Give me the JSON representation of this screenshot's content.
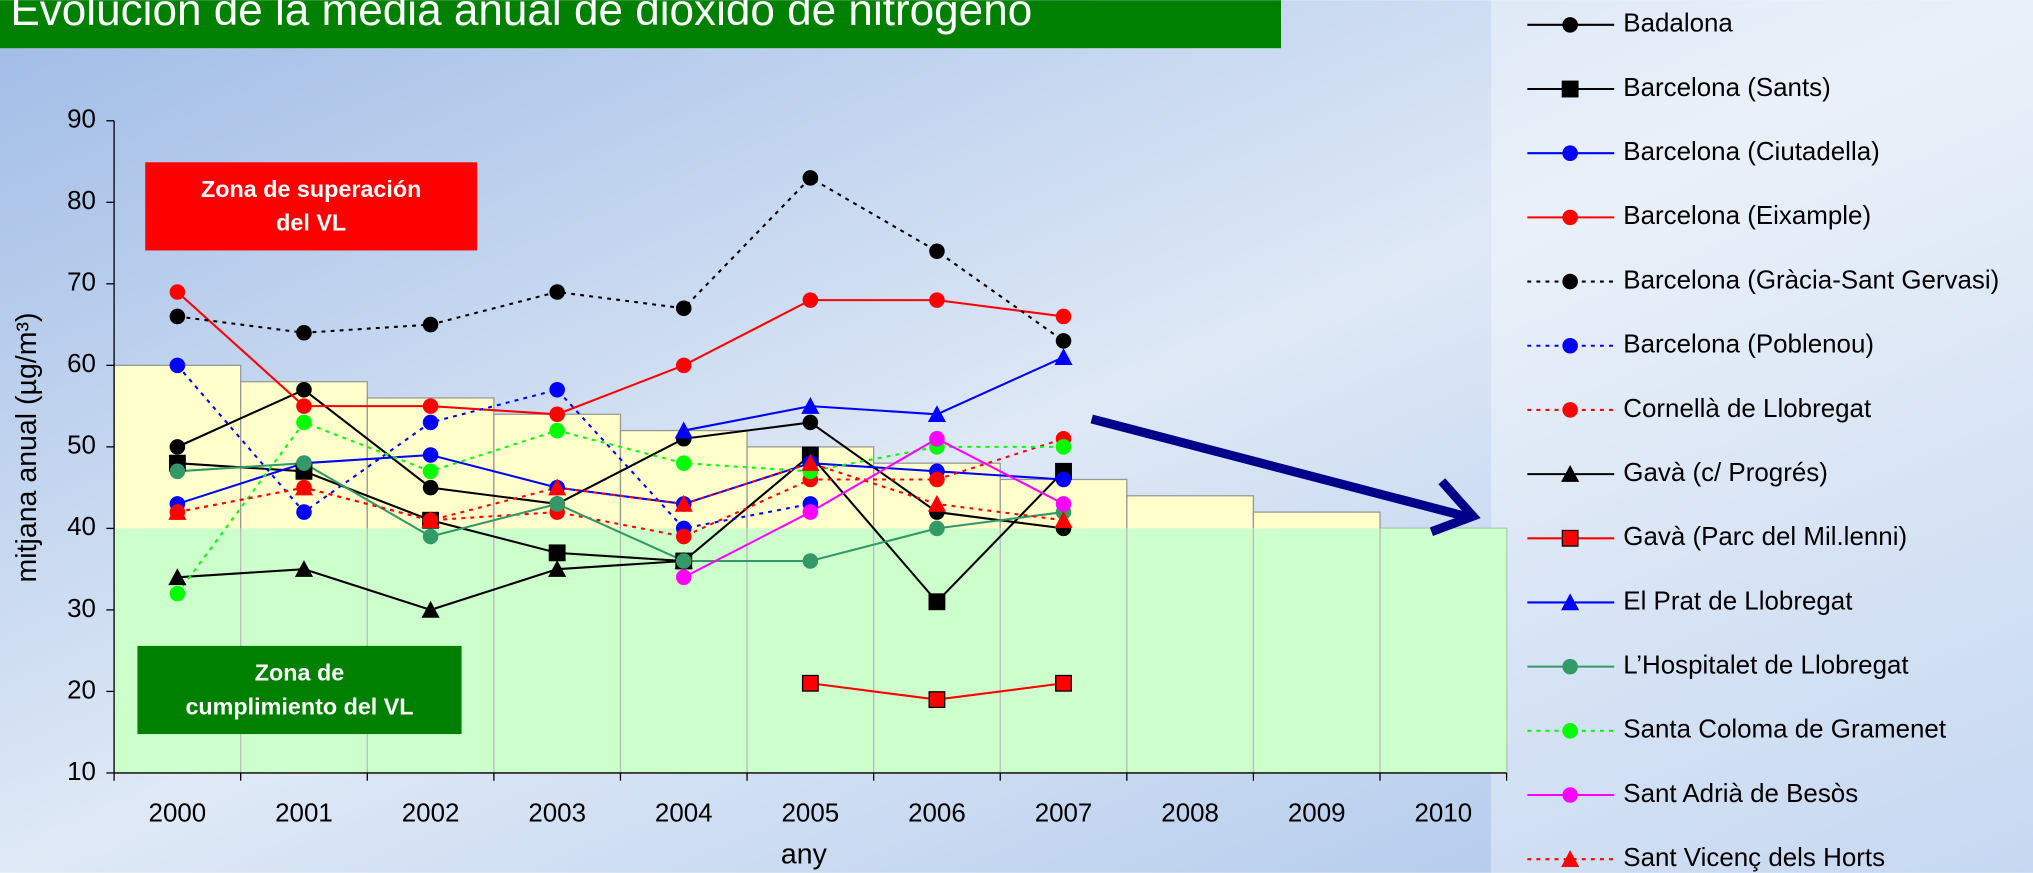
{
  "chart_data": {
    "type": "line",
    "title": "Evolución de la media anual de dióxido de nitrógeno",
    "x_label": "any",
    "y_label": "mitjana anual (µg/m³)",
    "annotations": [
      {
        "lines": [
          "Zona de superación",
          "del VL"
        ],
        "color": "#ff0000"
      },
      {
        "lines": [
          "Zona de",
          "cumplimiento del VL"
        ],
        "color": "#008000"
      }
    ],
    "categories": [
      "2000",
      "2001",
      "2002",
      "2003",
      "2004",
      "2005",
      "2006",
      "2007",
      "2008",
      "2009",
      "2010"
    ],
    "limit_values": [
      60,
      58,
      56,
      54,
      52,
      50,
      48,
      46,
      44,
      42,
      40
    ],
    "ylim": [
      10,
      90
    ],
    "yticks": [
      10,
      20,
      30,
      40,
      50,
      60,
      70,
      80,
      90
    ],
    "series": [
      {
        "name": "Badalona",
        "color": "#000000",
        "marker": "circle",
        "dash": "solid",
        "values": [
          50,
          57,
          45,
          43,
          51,
          53,
          42,
          40,
          null,
          null,
          null
        ]
      },
      {
        "name": "Barcelona (Sants)",
        "color": "#000000",
        "marker": "square",
        "dash": "solid",
        "values": [
          48,
          47,
          41,
          37,
          36,
          49,
          31,
          47,
          null,
          null,
          null
        ]
      },
      {
        "name": "Barcelona (Ciutadella)",
        "color": "#0000ff",
        "marker": "circle",
        "dash": "solid",
        "values": [
          43,
          48,
          49,
          45,
          43,
          48,
          47,
          46,
          null,
          null,
          null
        ]
      },
      {
        "name": "Barcelona (Eixample)",
        "color": "#ff0000",
        "marker": "circle",
        "dash": "solid",
        "values": [
          69,
          55,
          55,
          54,
          60,
          68,
          68,
          66,
          null,
          null,
          null
        ]
      },
      {
        "name": "Barcelona (Gràcia-Sant Gervasi)",
        "color": "#000000",
        "marker": "circle",
        "dash": "dotted",
        "values": [
          66,
          64,
          65,
          69,
          67,
          83,
          74,
          63,
          null,
          null,
          null
        ]
      },
      {
        "name": "Barcelona (Poblenou)",
        "color": "#0000ff",
        "marker": "circle",
        "dash": "dotted",
        "values": [
          60,
          42,
          53,
          57,
          40,
          43,
          null,
          null,
          null,
          null,
          null
        ]
      },
      {
        "name": "Cornellà de Llobregat",
        "color": "#ff0000",
        "marker": "circle",
        "dash": "dotted",
        "values": [
          42,
          45,
          41,
          42,
          39,
          46,
          46,
          51,
          null,
          null,
          null
        ]
      },
      {
        "name": "Gavà (c/ Progrés)",
        "color": "#000000",
        "marker": "triangle",
        "dash": "solid",
        "values": [
          34,
          35,
          30,
          35,
          36,
          null,
          null,
          null,
          null,
          null,
          null
        ]
      },
      {
        "name": "Gavà (Parc del Mil.lenni)",
        "color": "#ff0000",
        "marker": "square",
        "dash": "solid",
        "values": [
          null,
          null,
          null,
          null,
          null,
          21,
          19,
          21,
          null,
          null,
          null
        ]
      },
      {
        "name": "El Prat de Llobregat",
        "color": "#0000ff",
        "marker": "triangle",
        "dash": "solid",
        "values": [
          null,
          null,
          null,
          null,
          52,
          55,
          54,
          61,
          null,
          null,
          null
        ]
      },
      {
        "name": "L’Hospitalet de Llobregat",
        "color": "#339966",
        "marker": "circle",
        "dash": "solid",
        "values": [
          47,
          48,
          39,
          43,
          36,
          36,
          40,
          42,
          null,
          null,
          null
        ]
      },
      {
        "name": "Santa Coloma de Gramenet",
        "color": "#00ff00",
        "marker": "circle",
        "dash": "dotted",
        "values": [
          32,
          53,
          47,
          52,
          48,
          47,
          50,
          50,
          null,
          null,
          null
        ]
      },
      {
        "name": "Sant Adrià de Besòs",
        "color": "#ff00ff",
        "marker": "circle",
        "dash": "solid",
        "values": [
          null,
          null,
          null,
          null,
          34,
          42,
          51,
          43,
          null,
          null,
          null
        ]
      },
      {
        "name": "Sant Vicenç dels Horts",
        "color": "#ff0000",
        "marker": "triangle",
        "dash": "dotted",
        "values": [
          42,
          45,
          41,
          45,
          43,
          48,
          43,
          41,
          null,
          null,
          null
        ]
      }
    ]
  }
}
